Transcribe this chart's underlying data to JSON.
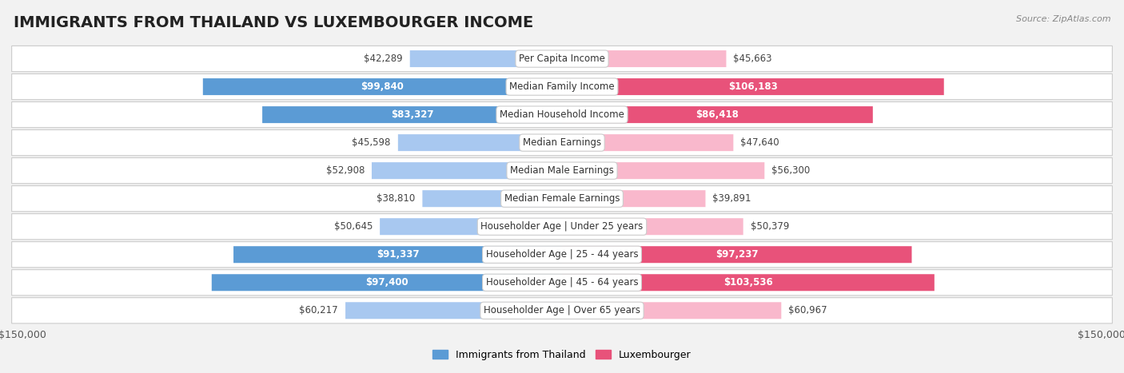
{
  "title": "IMMIGRANTS FROM THAILAND VS LUXEMBOURGER INCOME",
  "source": "Source: ZipAtlas.com",
  "categories": [
    "Per Capita Income",
    "Median Family Income",
    "Median Household Income",
    "Median Earnings",
    "Median Male Earnings",
    "Median Female Earnings",
    "Householder Age | Under 25 years",
    "Householder Age | 25 - 44 years",
    "Householder Age | 45 - 64 years",
    "Householder Age | Over 65 years"
  ],
  "thailand_values": [
    42289,
    99840,
    83327,
    45598,
    52908,
    38810,
    50645,
    91337,
    97400,
    60217
  ],
  "luxembourger_values": [
    45663,
    106183,
    86418,
    47640,
    56300,
    39891,
    50379,
    97237,
    103536,
    60967
  ],
  "thailand_labels": [
    "$42,289",
    "$99,840",
    "$83,327",
    "$45,598",
    "$52,908",
    "$38,810",
    "$50,645",
    "$91,337",
    "$97,400",
    "$60,217"
  ],
  "luxembourger_labels": [
    "$45,663",
    "$106,183",
    "$86,418",
    "$47,640",
    "$56,300",
    "$39,891",
    "$50,379",
    "$97,237",
    "$103,536",
    "$60,967"
  ],
  "thailand_color_light": "#a8c8f0",
  "thailand_color_dark": "#5b9bd5",
  "luxembourger_color_light": "#f9b8cc",
  "luxembourger_color_dark": "#e8527a",
  "max_value": 150000,
  "background_color": "#f2f2f2",
  "row_bg_color": "#e8e8e8",
  "title_fontsize": 14,
  "label_fontsize": 8.5,
  "source_fontsize": 8.0,
  "inside_label_threshold": 70000,
  "cat_label_fontsize": 8.5
}
